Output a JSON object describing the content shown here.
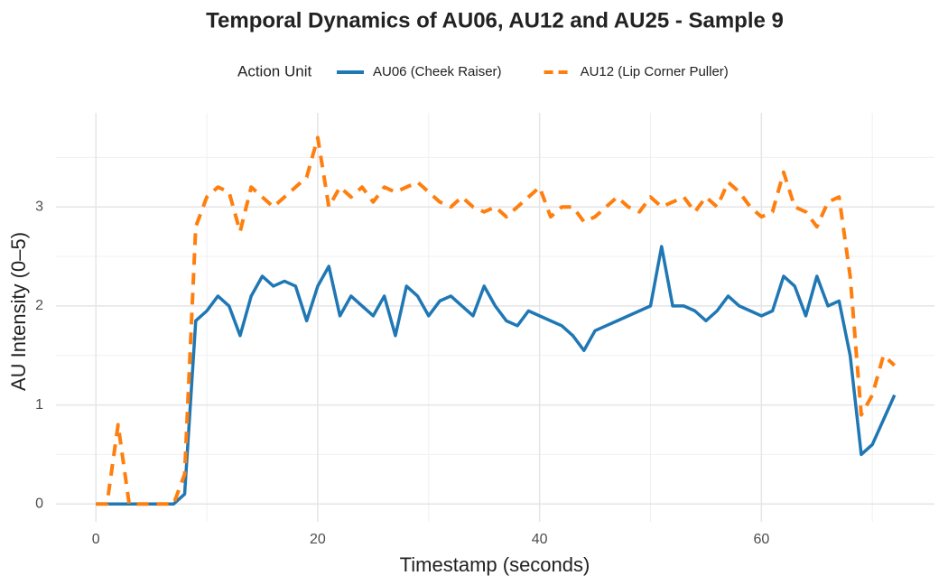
{
  "chart_data": {
    "type": "line",
    "title": "Temporal Dynamics of AU06, AU12 and AU25 - Sample 9",
    "x_label": "Timestamp (seconds)",
    "y_label": "AU Intensity (0–5)",
    "legend_title": "Action Unit",
    "legend": "top",
    "grid": true,
    "x": [
      0,
      1,
      2,
      3,
      4,
      5,
      6,
      7,
      8,
      9,
      10,
      11,
      12,
      13,
      14,
      15,
      16,
      17,
      18,
      19,
      20,
      21,
      22,
      23,
      24,
      25,
      26,
      27,
      28,
      29,
      30,
      31,
      32,
      33,
      34,
      35,
      36,
      37,
      38,
      39,
      40,
      41,
      42,
      43,
      44,
      45,
      46,
      47,
      48,
      49,
      50,
      51,
      52,
      53,
      54,
      55,
      56,
      57,
      58,
      59,
      60,
      61,
      62,
      63,
      64,
      65,
      66,
      67,
      68,
      69,
      70,
      71,
      72
    ],
    "series": [
      {
        "name": "AU06 (Cheek Raiser)",
        "color": "#1f77b4",
        "dash": "solid",
        "values": [
          0,
          0,
          0,
          0,
          0,
          0,
          0,
          0,
          0.1,
          1.85,
          1.95,
          2.1,
          2.0,
          1.7,
          2.1,
          2.3,
          2.2,
          2.25,
          2.2,
          1.85,
          2.2,
          2.4,
          1.9,
          2.1,
          2.0,
          1.9,
          2.1,
          1.7,
          2.2,
          2.1,
          1.9,
          2.05,
          2.1,
          2.0,
          1.9,
          2.2,
          2.0,
          1.85,
          1.8,
          1.95,
          1.9,
          1.85,
          1.8,
          1.7,
          1.55,
          1.75,
          1.8,
          1.85,
          1.9,
          1.95,
          2.0,
          2.6,
          2.0,
          2.0,
          1.95,
          1.85,
          1.95,
          2.1,
          2.0,
          1.95,
          1.9,
          1.95,
          2.3,
          2.2,
          1.9,
          2.3,
          2.0,
          2.05,
          1.5,
          0.5,
          0.6,
          0.85,
          1.1
        ]
      },
      {
        "name": "AU12 (Lip Corner Puller)",
        "color": "#ff7f0e",
        "dash": "dashed",
        "values": [
          0,
          0,
          0.8,
          0,
          0,
          0,
          0,
          0,
          0.3,
          2.8,
          3.1,
          3.2,
          3.15,
          2.75,
          3.2,
          3.1,
          3.0,
          3.1,
          3.2,
          3.3,
          3.7,
          3.0,
          3.2,
          3.1,
          3.2,
          3.05,
          3.2,
          3.15,
          3.2,
          3.25,
          3.15,
          3.05,
          3.0,
          3.1,
          3.0,
          2.95,
          3.0,
          2.9,
          3.0,
          3.1,
          3.2,
          2.9,
          3.0,
          3.0,
          2.85,
          2.9,
          3.0,
          3.1,
          3.0,
          2.95,
          3.1,
          3.0,
          3.05,
          3.1,
          2.95,
          3.1,
          3.0,
          3.25,
          3.15,
          3.0,
          2.9,
          2.95,
          3.35,
          3.0,
          2.95,
          2.8,
          3.05,
          3.1,
          2.3,
          0.9,
          1.1,
          1.5,
          1.4
        ]
      }
    ],
    "xlim": [
      -3.6,
      75.6
    ],
    "xticks": [
      0,
      20,
      40,
      60
    ],
    "ylim": [
      -0.18,
      3.95
    ],
    "yticks": [
      0,
      1,
      2,
      3
    ]
  }
}
